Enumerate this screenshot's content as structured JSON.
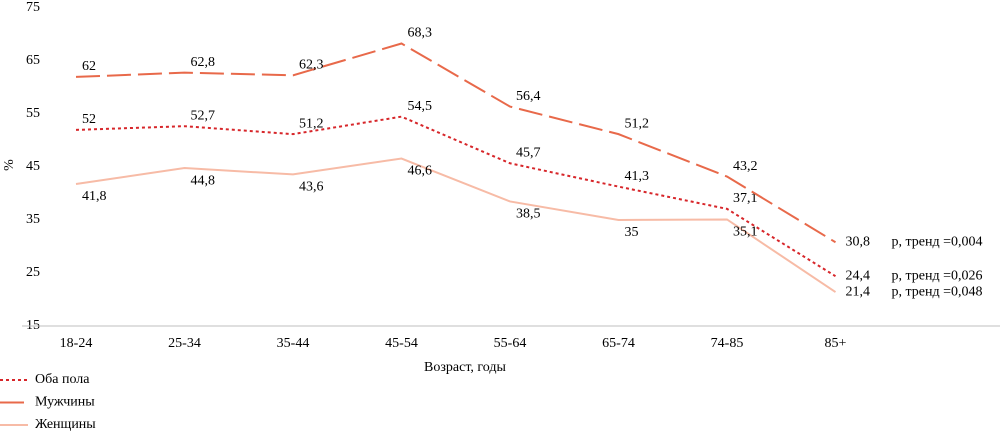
{
  "chart_data": {
    "type": "line",
    "x_label": "Возраст, годы",
    "y_label": "%",
    "categories": [
      "18-24",
      "25-34",
      "35-44",
      "45-54",
      "55-64",
      "65-74",
      "74-85",
      "85+"
    ],
    "series": [
      {
        "name": "Оба пола",
        "color": "#d7262a",
        "dash": "3,3",
        "values": [
          52,
          52.7,
          51.2,
          54.5,
          45.7,
          41.3,
          37.1,
          24.4
        ],
        "value_labels": [
          "52",
          "52,7",
          "51,2",
          "54,5",
          "45,7",
          "41,3",
          "37,1",
          "24,4"
        ],
        "annotation": "р, тренд =0,026"
      },
      {
        "name": "Мужчины",
        "color": "#e8694a",
        "dash": "24,7",
        "values": [
          62,
          62.8,
          62.3,
          68.3,
          56.4,
          51.2,
          43.2,
          30.8
        ],
        "value_labels": [
          "62",
          "62,8",
          "62,3",
          "68,3",
          "56,4",
          "51,2",
          "43,2",
          "30,8"
        ],
        "annotation": "р, тренд =0,004"
      },
      {
        "name": "Женщины",
        "color": "#f7bba6",
        "dash": "none",
        "values": [
          41.8,
          44.8,
          43.6,
          46.6,
          38.5,
          35,
          35.1,
          21.4
        ],
        "value_labels": [
          "41,8",
          "44,8",
          "43,6",
          "46,6",
          "38,5",
          "35",
          "35,1",
          "21,4"
        ],
        "annotation": "р, тренд =0,048"
      }
    ],
    "ylim": [
      15,
      75
    ],
    "yticks": [
      15,
      25,
      35,
      45,
      55,
      65,
      75
    ],
    "grid": false
  }
}
